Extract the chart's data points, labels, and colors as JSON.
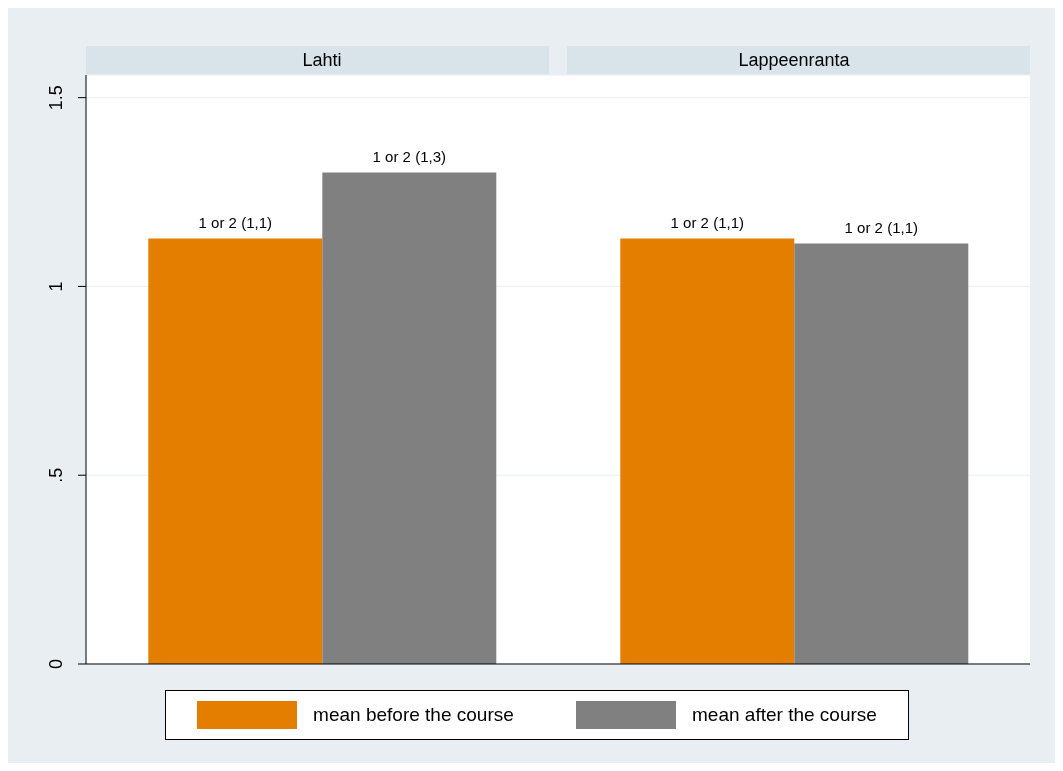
{
  "chart_data": {
    "type": "bar",
    "categories": [
      "Lahti",
      "Lappeenranta"
    ],
    "series": [
      {
        "name": "mean before the course",
        "color": "#e37e00",
        "values": [
          1.127,
          1.127
        ],
        "value_labels": [
          "1 or 2 (1,1)",
          "1 or 2 (1,1)"
        ]
      },
      {
        "name": "mean after the course",
        "color": "#808080",
        "values": [
          1.302,
          1.114
        ],
        "value_labels": [
          "1 or 2 (1,3)",
          "1 or 2 (1,1)"
        ]
      }
    ],
    "ylim": [
      0,
      1.56
    ],
    "yticks": [
      {
        "value": 0,
        "label": "0"
      },
      {
        "value": 0.5,
        "label": ".5"
      },
      {
        "value": 1,
        "label": "1"
      },
      {
        "value": 1.5,
        "label": "1.5"
      }
    ],
    "grid": "y",
    "legend": "bottom"
  }
}
